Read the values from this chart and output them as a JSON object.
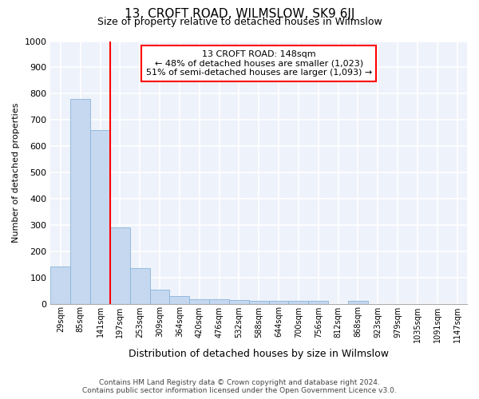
{
  "title": "13, CROFT ROAD, WILMSLOW, SK9 6JJ",
  "subtitle": "Size of property relative to detached houses in Wilmslow",
  "xlabel": "Distribution of detached houses by size in Wilmslow",
  "ylabel": "Number of detached properties",
  "bar_color": "#c5d8f0",
  "bar_edge_color": "#8ab4d8",
  "categories": [
    "29sqm",
    "85sqm",
    "141sqm",
    "197sqm",
    "253sqm",
    "309sqm",
    "364sqm",
    "420sqm",
    "476sqm",
    "532sqm",
    "588sqm",
    "644sqm",
    "700sqm",
    "756sqm",
    "812sqm",
    "868sqm",
    "923sqm",
    "979sqm",
    "1035sqm",
    "1091sqm",
    "1147sqm"
  ],
  "values": [
    140,
    780,
    660,
    290,
    135,
    52,
    28,
    18,
    18,
    13,
    10,
    10,
    10,
    10,
    0,
    10,
    0,
    0,
    0,
    0,
    0
  ],
  "ylim": [
    0,
    1000
  ],
  "yticks": [
    0,
    100,
    200,
    300,
    400,
    500,
    600,
    700,
    800,
    900,
    1000
  ],
  "red_line_x": 2.5,
  "annotation_line1": "13 CROFT ROAD: 148sqm",
  "annotation_line2": "← 48% of detached houses are smaller (1,023)",
  "annotation_line3": "51% of semi-detached houses are larger (1,093) →",
  "footer_line1": "Contains HM Land Registry data © Crown copyright and database right 2024.",
  "footer_line2": "Contains public sector information licensed under the Open Government Licence v3.0.",
  "background_color": "#eef2fb",
  "grid_color": "#ffffff",
  "title_fontsize": 11,
  "subtitle_fontsize": 9,
  "ylabel_fontsize": 8,
  "xlabel_fontsize": 9,
  "tick_fontsize": 7,
  "footer_fontsize": 6.5
}
